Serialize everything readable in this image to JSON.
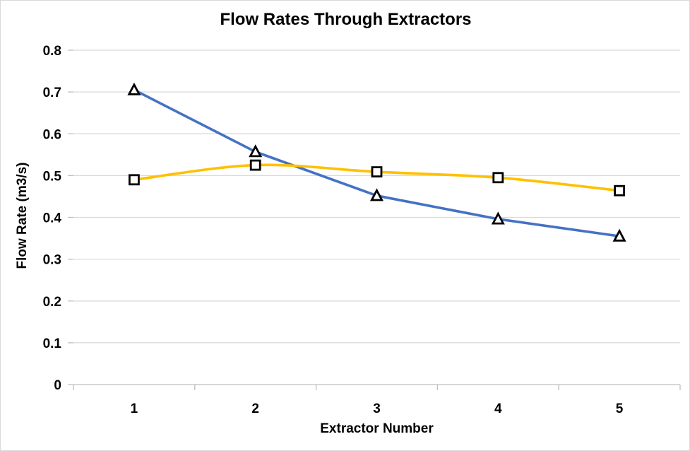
{
  "chart": {
    "title": "Flow Rates Through Extractors",
    "x_axis_title": "Extractor Number",
    "y_axis_title": "Flow Rate (m3/s)"
  },
  "chart_data": {
    "type": "line",
    "title": "Flow Rates Through Extractors",
    "xlabel": "Extractor Number",
    "ylabel": "Flow Rate (m3/s)",
    "categories": [
      "1",
      "2",
      "3",
      "4",
      "5"
    ],
    "series": [
      {
        "name": "triangle-marker-series",
        "marker": "triangle",
        "color": "#4472C4",
        "smooth": false,
        "values": [
          0.705,
          0.557,
          0.452,
          0.396,
          0.355
        ]
      },
      {
        "name": "square-marker-series",
        "marker": "square",
        "color": "#FFC000",
        "smooth": true,
        "values": [
          0.49,
          0.525,
          0.509,
          0.495,
          0.464
        ]
      }
    ],
    "ylim": [
      0,
      0.8
    ],
    "yticks": [
      0,
      0.1,
      0.2,
      0.3,
      0.4,
      0.5,
      0.6,
      0.7,
      0.8
    ],
    "grid": "horizontal",
    "legend": "none",
    "colors": {
      "gridline": "#D9D9D9",
      "axis": "#BFBFBF",
      "text": "#000000",
      "background": "#FFFFFF",
      "chart_border": "#D9D9D9",
      "marker_outline": "#000000",
      "marker_fill": "#FFFFFF"
    }
  }
}
